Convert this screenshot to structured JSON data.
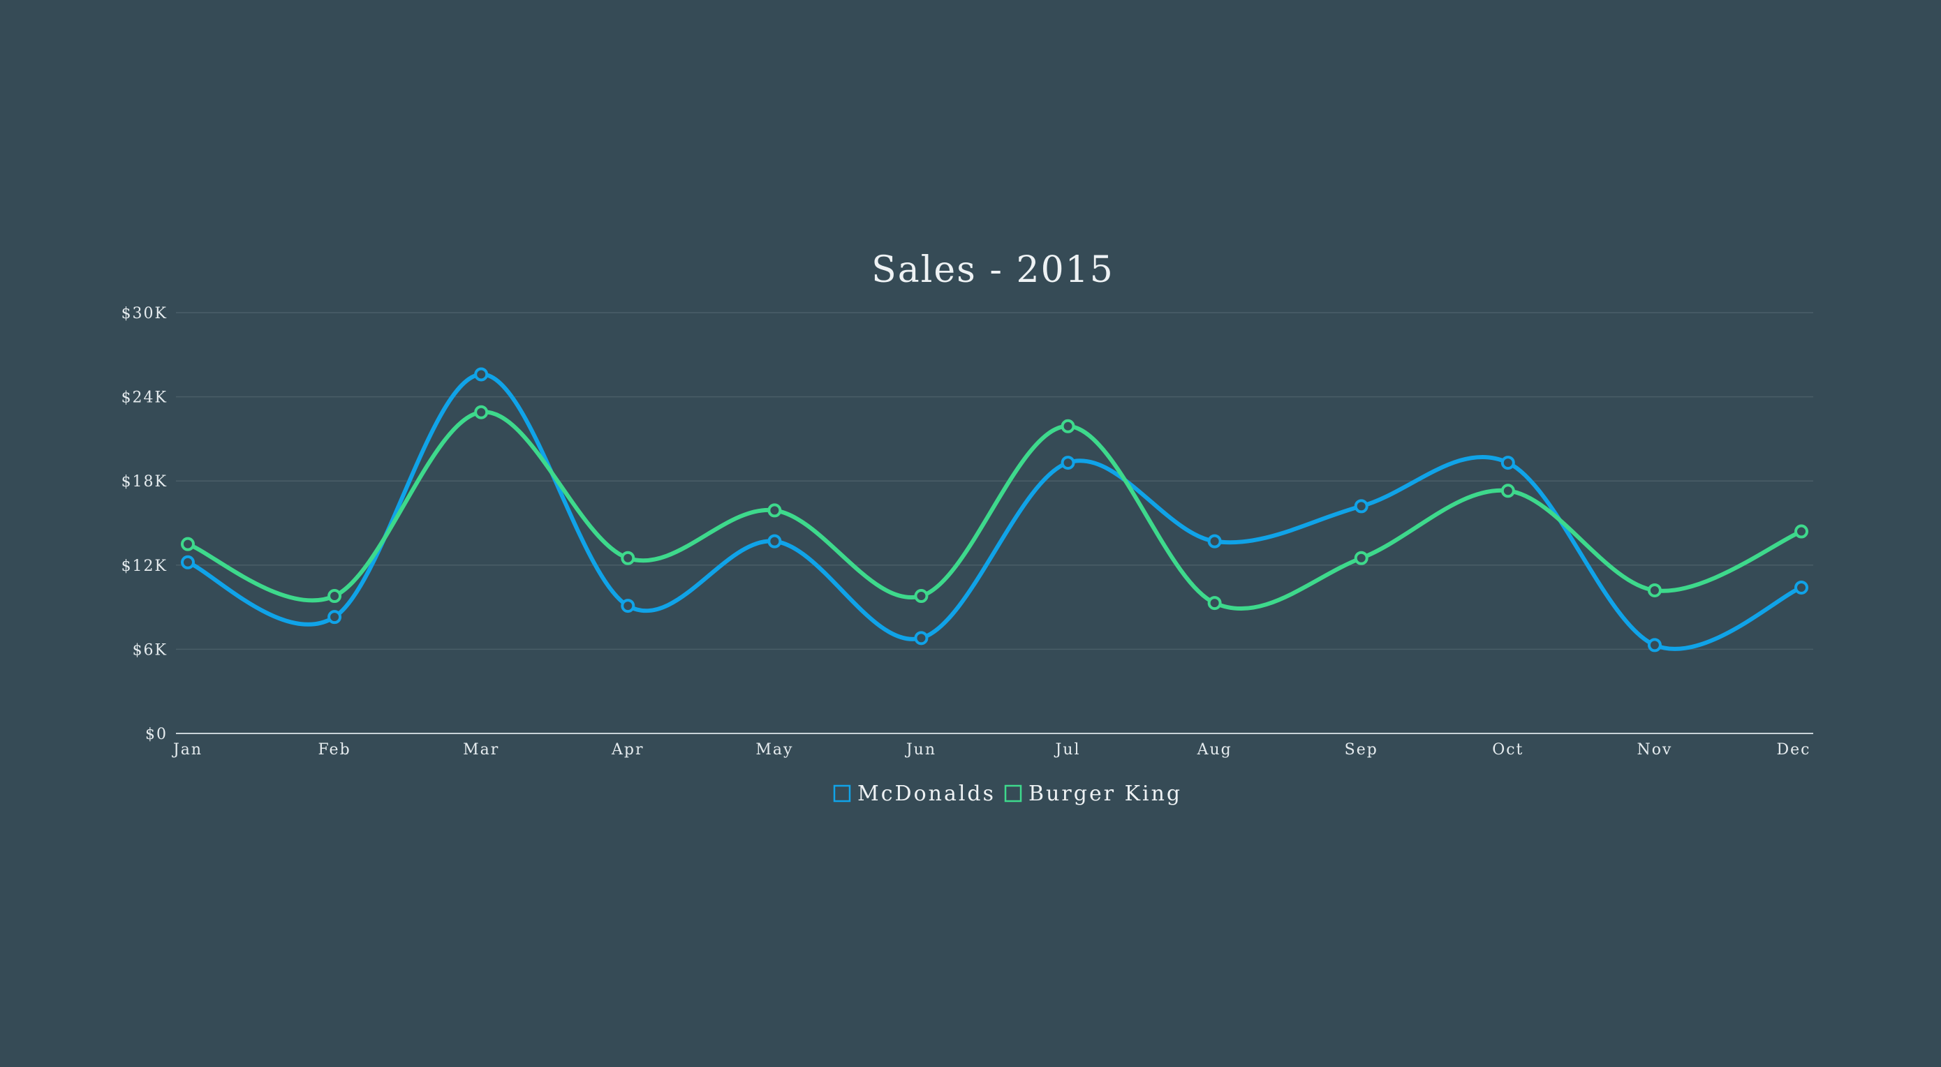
{
  "colors": {
    "background": "#364b56",
    "grid": "#4a5e68",
    "axis": "#c9d3d8",
    "mcdonalds": "#10a3e8",
    "burger_king": "#3ed98c",
    "text": "#eef2f4"
  },
  "chart_data": {
    "type": "line",
    "title": "Sales - 2015",
    "xlabel": "",
    "ylabel": "",
    "categories": [
      "Jan",
      "Feb",
      "Mar",
      "Apr",
      "May",
      "Jun",
      "Jul",
      "Aug",
      "Sep",
      "Oct",
      "Nov",
      "Dec"
    ],
    "y_ticks": [
      0,
      6000,
      12000,
      18000,
      24000,
      30000
    ],
    "y_tick_labels": [
      "$0",
      "$6K",
      "$12K",
      "$18K",
      "$24K",
      "$30K"
    ],
    "ylim": [
      0,
      30000
    ],
    "grid": true,
    "legend_position": "bottom-center",
    "series": [
      {
        "name": "McDonalds",
        "color": "#10a3e8",
        "values": [
          12200,
          8300,
          25600,
          9100,
          13700,
          6800,
          19300,
          13700,
          16200,
          19300,
          6300,
          10400
        ]
      },
      {
        "name": "Burger King",
        "color": "#3ed98c",
        "values": [
          13500,
          9800,
          22900,
          12500,
          15900,
          9800,
          21900,
          9300,
          12500,
          17300,
          10200,
          14400
        ]
      }
    ]
  }
}
